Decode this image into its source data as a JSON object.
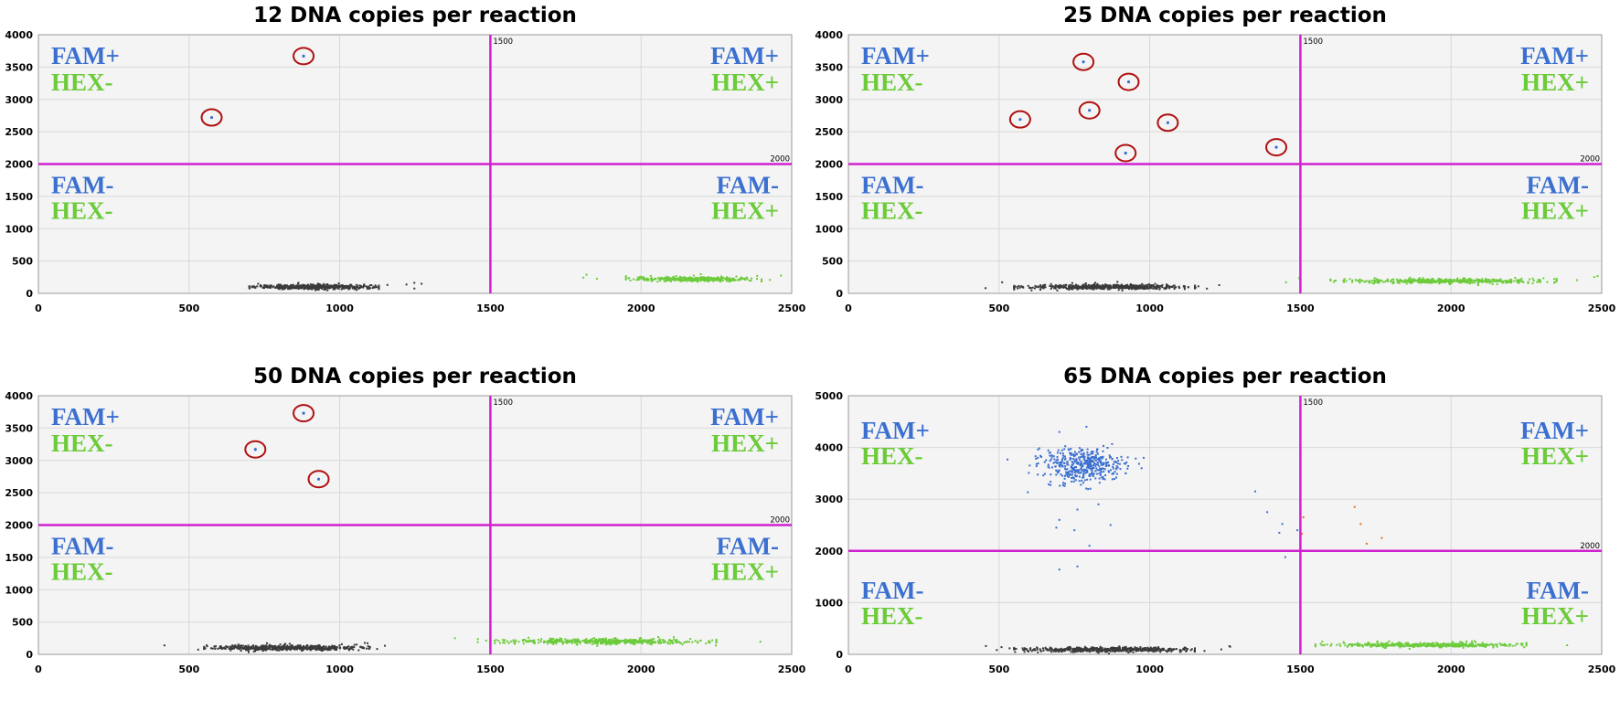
{
  "colors": {
    "fam": "#3b6fd0",
    "hex": "#6ccb3a",
    "negative": "#3a3a3a",
    "threshold": "#d020d0",
    "circle": "#b01010",
    "orange": "#e07020",
    "plot_bg": "#f4f4f4",
    "grid": "#d8d8d8"
  },
  "quadrant_labels": {
    "fam_pos": "FAM+",
    "fam_neg": "FAM-",
    "hex_pos": "HEX+",
    "hex_neg": "HEX-"
  },
  "chart_data": [
    {
      "type": "scatter",
      "title": "12 DNA copies per reaction",
      "xlim": [
        0,
        2500
      ],
      "ylim": [
        0,
        4000
      ],
      "xticks": [
        0,
        500,
        1000,
        1500,
        2000,
        2500
      ],
      "yticks": [
        0,
        500,
        1000,
        1500,
        2000,
        2500,
        3000,
        3500,
        4000
      ],
      "threshold_x": 1500,
      "threshold_y": 2000,
      "threshold_x_label": "1500",
      "threshold_y_label": "2000",
      "circled_points": [
        [
          575,
          2720
        ],
        [
          880,
          3670
        ]
      ],
      "clusters": [
        {
          "name": "negative",
          "color_key": "negative",
          "xrange": [
            700,
            1130
          ],
          "ycenter": 100,
          "yspread": 35,
          "count": 500
        },
        {
          "name": "hex",
          "color_key": "hex",
          "xrange": [
            1950,
            2400
          ],
          "ycenter": 220,
          "yspread": 35,
          "count": 350
        }
      ]
    },
    {
      "type": "scatter",
      "title": "25 DNA copies per reaction",
      "xlim": [
        0,
        2500
      ],
      "ylim": [
        0,
        4000
      ],
      "xticks": [
        0,
        500,
        1000,
        1500,
        2000,
        2500
      ],
      "yticks": [
        0,
        500,
        1000,
        1500,
        2000,
        2500,
        3000,
        3500,
        4000
      ],
      "threshold_x": 1500,
      "threshold_y": 2000,
      "threshold_x_label": "1500",
      "threshold_y_label": "2000",
      "circled_points": [
        [
          780,
          3580
        ],
        [
          930,
          3270
        ],
        [
          800,
          2830
        ],
        [
          570,
          2690
        ],
        [
          1060,
          2640
        ],
        [
          920,
          2170
        ],
        [
          1420,
          2260
        ]
      ],
      "clusters": [
        {
          "name": "negative",
          "color_key": "negative",
          "xrange": [
            550,
            1150
          ],
          "ycenter": 100,
          "yspread": 35,
          "count": 550
        },
        {
          "name": "hex",
          "color_key": "hex",
          "xrange": [
            1600,
            2350
          ],
          "ycenter": 190,
          "yspread": 35,
          "count": 450
        }
      ]
    },
    {
      "type": "scatter",
      "title": "50 DNA copies per reaction",
      "xlim": [
        0,
        2500
      ],
      "ylim": [
        0,
        4000
      ],
      "xticks": [
        0,
        500,
        1000,
        1500,
        2000,
        2500
      ],
      "yticks": [
        0,
        500,
        1000,
        1500,
        2000,
        2500,
        3000,
        3500,
        4000
      ],
      "threshold_x": 1500,
      "threshold_y": 2000,
      "threshold_x_label": "1500",
      "threshold_y_label": "2000",
      "circled_points": [
        [
          880,
          3730
        ],
        [
          720,
          3170
        ],
        [
          930,
          2710
        ]
      ],
      "clusters": [
        {
          "name": "negative",
          "color_key": "negative",
          "xrange": [
            550,
            1100
          ],
          "ycenter": 100,
          "yspread": 40,
          "count": 550
        },
        {
          "name": "hex",
          "color_key": "hex",
          "xrange": [
            1500,
            2250
          ],
          "ycenter": 200,
          "yspread": 40,
          "count": 500
        }
      ]
    },
    {
      "type": "scatter",
      "title": "65 DNA copies per reaction",
      "xlim": [
        0,
        2500
      ],
      "ylim": [
        0,
        5000
      ],
      "xticks": [
        0,
        500,
        1000,
        1500,
        2000,
        2500
      ],
      "yticks": [
        0,
        1000,
        2000,
        3000,
        4000,
        5000
      ],
      "threshold_x": 1500,
      "threshold_y": 2000,
      "threshold_x_label": "1500",
      "threshold_y_label": "2000",
      "circled_points": [],
      "clusters": [
        {
          "name": "negative",
          "color_key": "negative",
          "xrange": [
            550,
            1150
          ],
          "ycenter": 90,
          "yspread": 45,
          "count": 550
        },
        {
          "name": "hex",
          "color_key": "hex",
          "xrange": [
            1550,
            2250
          ],
          "ycenter": 180,
          "yspread": 40,
          "count": 450
        },
        {
          "name": "fam",
          "color_key": "fam",
          "xcenter": 780,
          "xspread": 70,
          "ycenter": 3650,
          "yspread": 170,
          "count": 450
        }
      ],
      "extra_points": [
        {
          "color_key": "fam",
          "points": [
            [
              980,
              3800
            ],
            [
              920,
              3500
            ],
            [
              830,
              2900
            ],
            [
              760,
              2800
            ],
            [
              700,
              2600
            ],
            [
              750,
              2400
            ],
            [
              800,
              2100
            ],
            [
              690,
              2450
            ],
            [
              870,
              2500
            ],
            [
              1350,
              3150
            ],
            [
              1390,
              2750
            ],
            [
              1430,
              2350
            ],
            [
              1440,
              2520
            ],
            [
              1490,
              2400
            ],
            [
              1450,
              1880
            ],
            [
              700,
              1640
            ],
            [
              760,
              1700
            ],
            [
              790,
              4400
            ],
            [
              700,
              4300
            ]
          ]
        },
        {
          "color_key": "orange",
          "points": [
            [
              1680,
              2850
            ],
            [
              1700,
              2520
            ],
            [
              1720,
              2140
            ],
            [
              1770,
              2250
            ],
            [
              1510,
              2650
            ],
            [
              1505,
              2330
            ]
          ]
        }
      ]
    }
  ]
}
